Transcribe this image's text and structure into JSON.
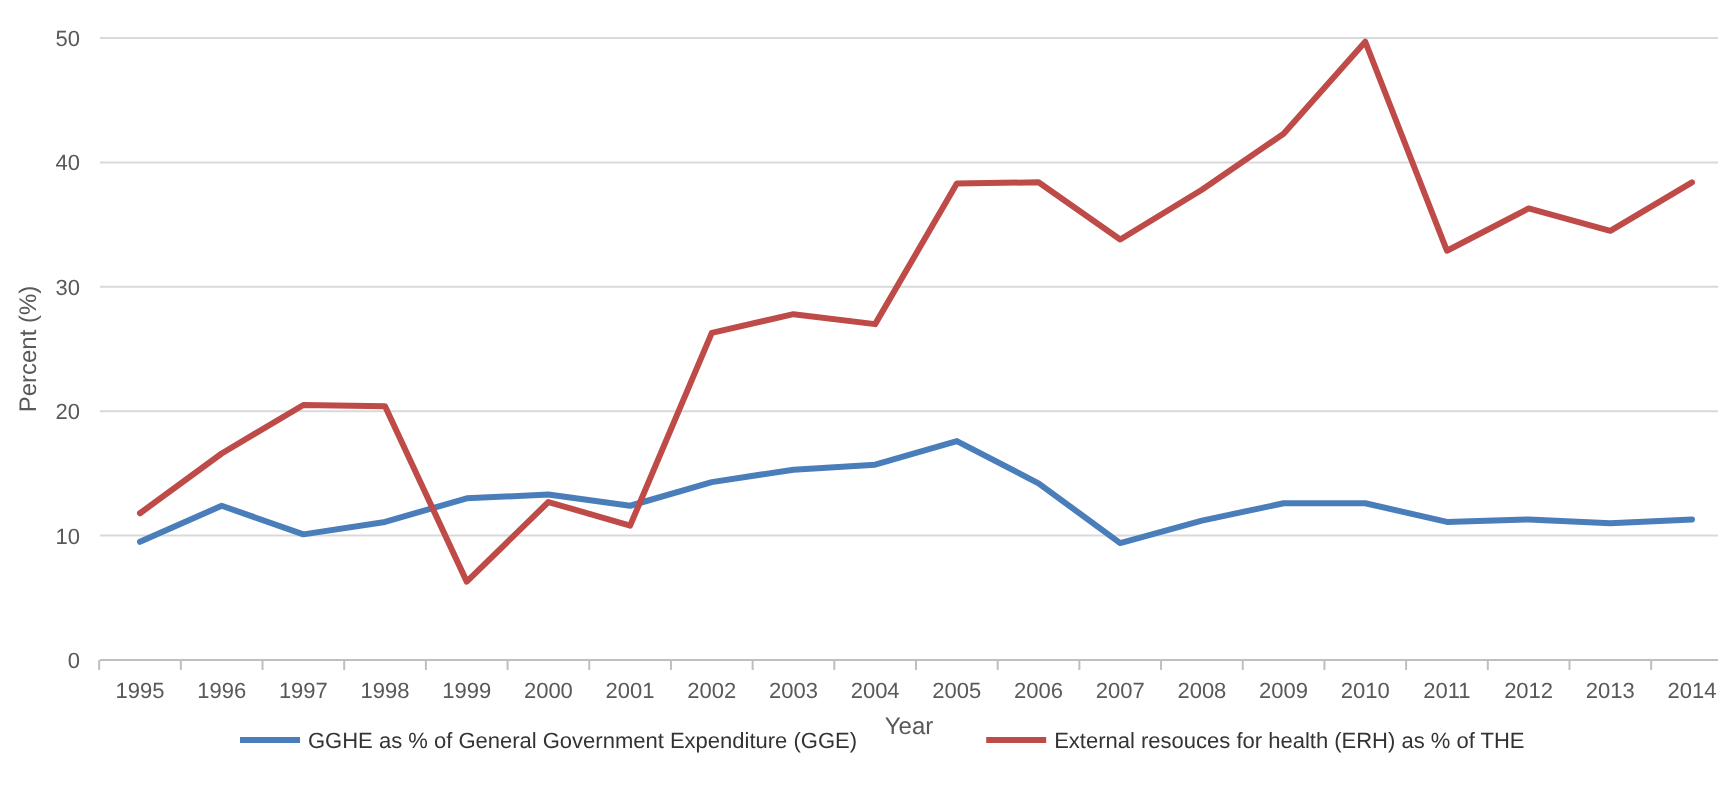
{
  "chart_data": {
    "type": "line",
    "xlabel": "Year",
    "ylabel": "Percent (%)",
    "categories": [
      "1995",
      "1996",
      "1997",
      "1998",
      "1999",
      "2000",
      "2001",
      "2002",
      "2003",
      "2004",
      "2005",
      "2006",
      "2007",
      "2008",
      "2009",
      "2010",
      "2011",
      "2012",
      "2013",
      "2014"
    ],
    "series": [
      {
        "name": "GGHE as % of General Government Expenditure (GGE)",
        "color": "#4a7ebb",
        "values": [
          9.5,
          12.4,
          10.1,
          11.1,
          13.0,
          13.3,
          12.4,
          14.3,
          15.3,
          15.7,
          17.6,
          14.2,
          9.4,
          11.2,
          12.6,
          12.6,
          11.1,
          11.3,
          11.0,
          11.3
        ]
      },
      {
        "name": "External resouces for health (ERH) as % of THE",
        "color": "#be4b48",
        "values": [
          11.8,
          16.6,
          20.5,
          20.4,
          6.3,
          12.7,
          10.8,
          26.3,
          27.8,
          27.0,
          38.3,
          38.4,
          33.8,
          37.8,
          42.3,
          49.7,
          32.9,
          36.3,
          34.5,
          38.4
        ]
      }
    ],
    "ylim": [
      0,
      50
    ],
    "yticks": [
      0,
      10,
      20,
      30,
      40,
      50
    ],
    "grid": "y",
    "legend": "bottom",
    "marker": "none",
    "line_style": "solid"
  }
}
